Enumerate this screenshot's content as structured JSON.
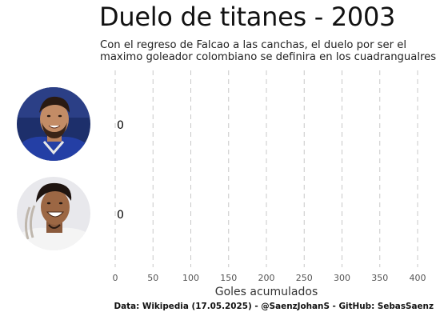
{
  "title": "Duelo de titanes - 2003",
  "subtitle": [
    "Con el regreso de Falcao a las canchas, el duelo por ser el",
    "maximo goleador colombiano se definira en los cuadrangualres"
  ],
  "caption": "Data: Wikipedia (17.05.2025) - @SaenzJohanS - GitHub: SebasSaenz",
  "colors": {
    "gridline": "#c8c8c8",
    "tick_text": "#555555",
    "value_text": "#000000",
    "avatar_bg_1": "#1d2f6b",
    "avatar_bg_2": "#e8e8ec"
  },
  "chart_data": {
    "type": "bar",
    "orientation": "horizontal",
    "categories": [
      "player-1",
      "player-2"
    ],
    "values": [
      0,
      0
    ],
    "value_labels": [
      "0",
      "0"
    ],
    "xlabel": "Goles acumulados",
    "xticks": [
      0,
      50,
      100,
      150,
      200,
      250,
      300,
      350,
      400
    ],
    "xtick_labels": [
      "0",
      "50",
      "100",
      "150",
      "200",
      "250",
      "300",
      "350",
      "400"
    ],
    "xlim": [
      0,
      400
    ],
    "grid": "vertical dashed",
    "legend": "none",
    "icons": [
      "player-photo-icon",
      "player-photo-icon"
    ]
  }
}
